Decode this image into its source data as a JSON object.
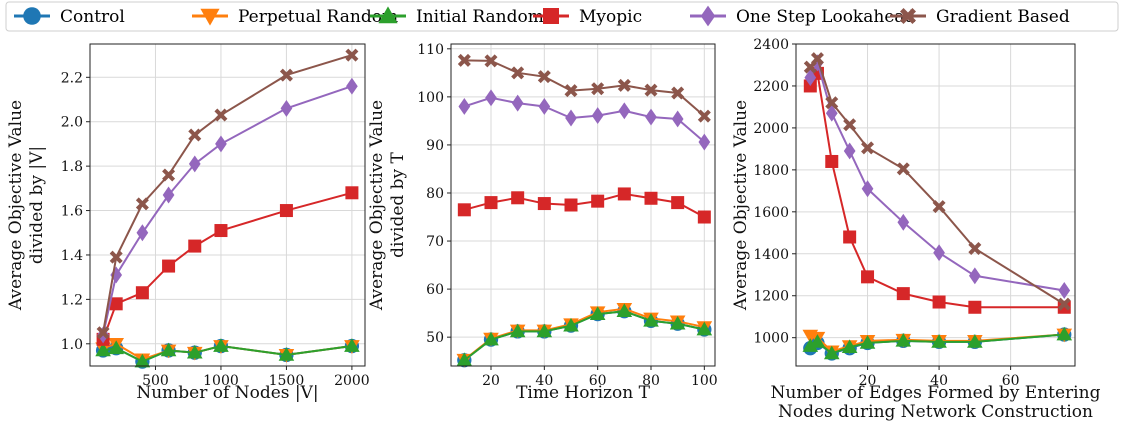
{
  "legend": [
    {
      "name": "Control",
      "color": "#1f77b4",
      "marker": "circle"
    },
    {
      "name": "Perpetual Random",
      "color": "#ff7f0e",
      "marker": "triangle-down"
    },
    {
      "name": "Initial Random",
      "color": "#2ca02c",
      "marker": "triangle-up"
    },
    {
      "name": "Myopic",
      "color": "#d62728",
      "marker": "square"
    },
    {
      "name": "One Step Lookahead",
      "color": "#9467bd",
      "marker": "diamond"
    },
    {
      "name": "Gradient Based",
      "color": "#8c564b",
      "marker": "x"
    }
  ],
  "chart_data": [
    {
      "type": "line",
      "xlabel": "Number of Nodes |V|",
      "ylabel": [
        "Average Objective Value",
        "divided by |V|"
      ],
      "xlim": [
        0,
        2100
      ],
      "ylim": [
        0.9,
        2.35
      ],
      "xticks": [
        500,
        1000,
        1500,
        2000
      ],
      "yticks": [
        1.0,
        1.2,
        1.4,
        1.6,
        1.8,
        2.0,
        2.2
      ],
      "ytick_decimals": 1,
      "grid": true,
      "x": [
        100,
        200,
        400,
        600,
        800,
        1000,
        1500,
        2000
      ],
      "series": [
        {
          "name": "Control",
          "values": [
            0.97,
            0.98,
            0.92,
            0.97,
            0.96,
            0.99,
            0.95,
            0.99
          ]
        },
        {
          "name": "Perpetual Random",
          "values": [
            0.98,
            1.0,
            0.93,
            0.97,
            0.96,
            0.99,
            0.95,
            0.99
          ]
        },
        {
          "name": "Initial Random",
          "values": [
            0.97,
            0.98,
            0.92,
            0.97,
            0.96,
            0.99,
            0.95,
            0.99
          ]
        },
        {
          "name": "Myopic",
          "values": [
            1.02,
            1.18,
            1.23,
            1.35,
            1.44,
            1.51,
            1.6,
            1.68
          ]
        },
        {
          "name": "One Step Lookahead",
          "values": [
            1.04,
            1.31,
            1.5,
            1.67,
            1.81,
            1.9,
            2.06,
            2.16
          ]
        },
        {
          "name": "Gradient Based",
          "values": [
            1.05,
            1.39,
            1.63,
            1.76,
            1.94,
            2.03,
            2.21,
            2.3
          ]
        }
      ]
    },
    {
      "type": "line",
      "xlabel": "Time Horizon T",
      "ylabel": [
        "Average Objective Value",
        "divided by T"
      ],
      "xlim": [
        5,
        104
      ],
      "ylim": [
        44,
        111
      ],
      "xticks": [
        20,
        40,
        60,
        80,
        100
      ],
      "yticks": [
        50,
        60,
        70,
        80,
        90,
        100,
        110
      ],
      "ytick_decimals": 0,
      "grid": true,
      "x": [
        10,
        20,
        30,
        40,
        50,
        60,
        70,
        80,
        90,
        100
      ],
      "series": [
        {
          "name": "Control",
          "values": [
            45.2,
            49.5,
            51.2,
            51.2,
            52.4,
            54.8,
            55.4,
            53.4,
            52.8,
            51.6
          ]
        },
        {
          "name": "Perpetual Random",
          "values": [
            45.3,
            49.7,
            51.4,
            51.4,
            52.7,
            55.2,
            55.9,
            53.9,
            53.3,
            52.1
          ]
        },
        {
          "name": "Initial Random",
          "values": [
            45.2,
            49.5,
            51.2,
            51.2,
            52.4,
            54.8,
            55.4,
            53.4,
            52.8,
            51.6
          ]
        },
        {
          "name": "Myopic",
          "values": [
            76.5,
            78.0,
            79.0,
            77.8,
            77.5,
            78.3,
            79.8,
            78.9,
            78.0,
            75.0
          ]
        },
        {
          "name": "One Step Lookahead",
          "values": [
            98.0,
            99.8,
            98.7,
            98.0,
            95.6,
            96.1,
            97.1,
            95.8,
            95.4,
            90.6
          ]
        },
        {
          "name": "Gradient Based",
          "values": [
            107.6,
            107.5,
            105.0,
            104.2,
            101.3,
            101.7,
            102.4,
            101.4,
            100.8,
            96.0
          ]
        }
      ]
    },
    {
      "type": "line",
      "xlabel": [
        "Number of Edges Formed by Entering",
        "Nodes during Network Construction"
      ],
      "ylabel": [
        "Average Objective Value"
      ],
      "xlim": [
        0,
        78
      ],
      "ylim": [
        865,
        2400
      ],
      "xticks": [
        20,
        40,
        60
      ],
      "yticks": [
        1000,
        1200,
        1400,
        1600,
        1800,
        2000,
        2200,
        2400
      ],
      "ytick_decimals": 0,
      "grid": true,
      "x": [
        4,
        6,
        10,
        15,
        20,
        30,
        40,
        50,
        75
      ],
      "series": [
        {
          "name": "Control",
          "values": [
            950,
            975,
            925,
            950,
            975,
            985,
            980,
            980,
            1015
          ]
        },
        {
          "name": "Perpetual Random",
          "values": [
            1010,
            1000,
            935,
            960,
            985,
            990,
            985,
            985,
            1015
          ]
        },
        {
          "name": "Initial Random",
          "values": [
            960,
            980,
            925,
            955,
            975,
            985,
            980,
            980,
            1015
          ]
        },
        {
          "name": "Myopic",
          "values": [
            2200,
            2260,
            1840,
            1480,
            1290,
            1210,
            1170,
            1145,
            1145
          ]
        },
        {
          "name": "One Step Lookahead",
          "values": [
            2240,
            2310,
            2070,
            1890,
            1710,
            1550,
            1405,
            1295,
            1225
          ]
        },
        {
          "name": "Gradient Based",
          "values": [
            2290,
            2330,
            2120,
            2015,
            1905,
            1805,
            1625,
            1425,
            1160
          ]
        }
      ]
    }
  ]
}
